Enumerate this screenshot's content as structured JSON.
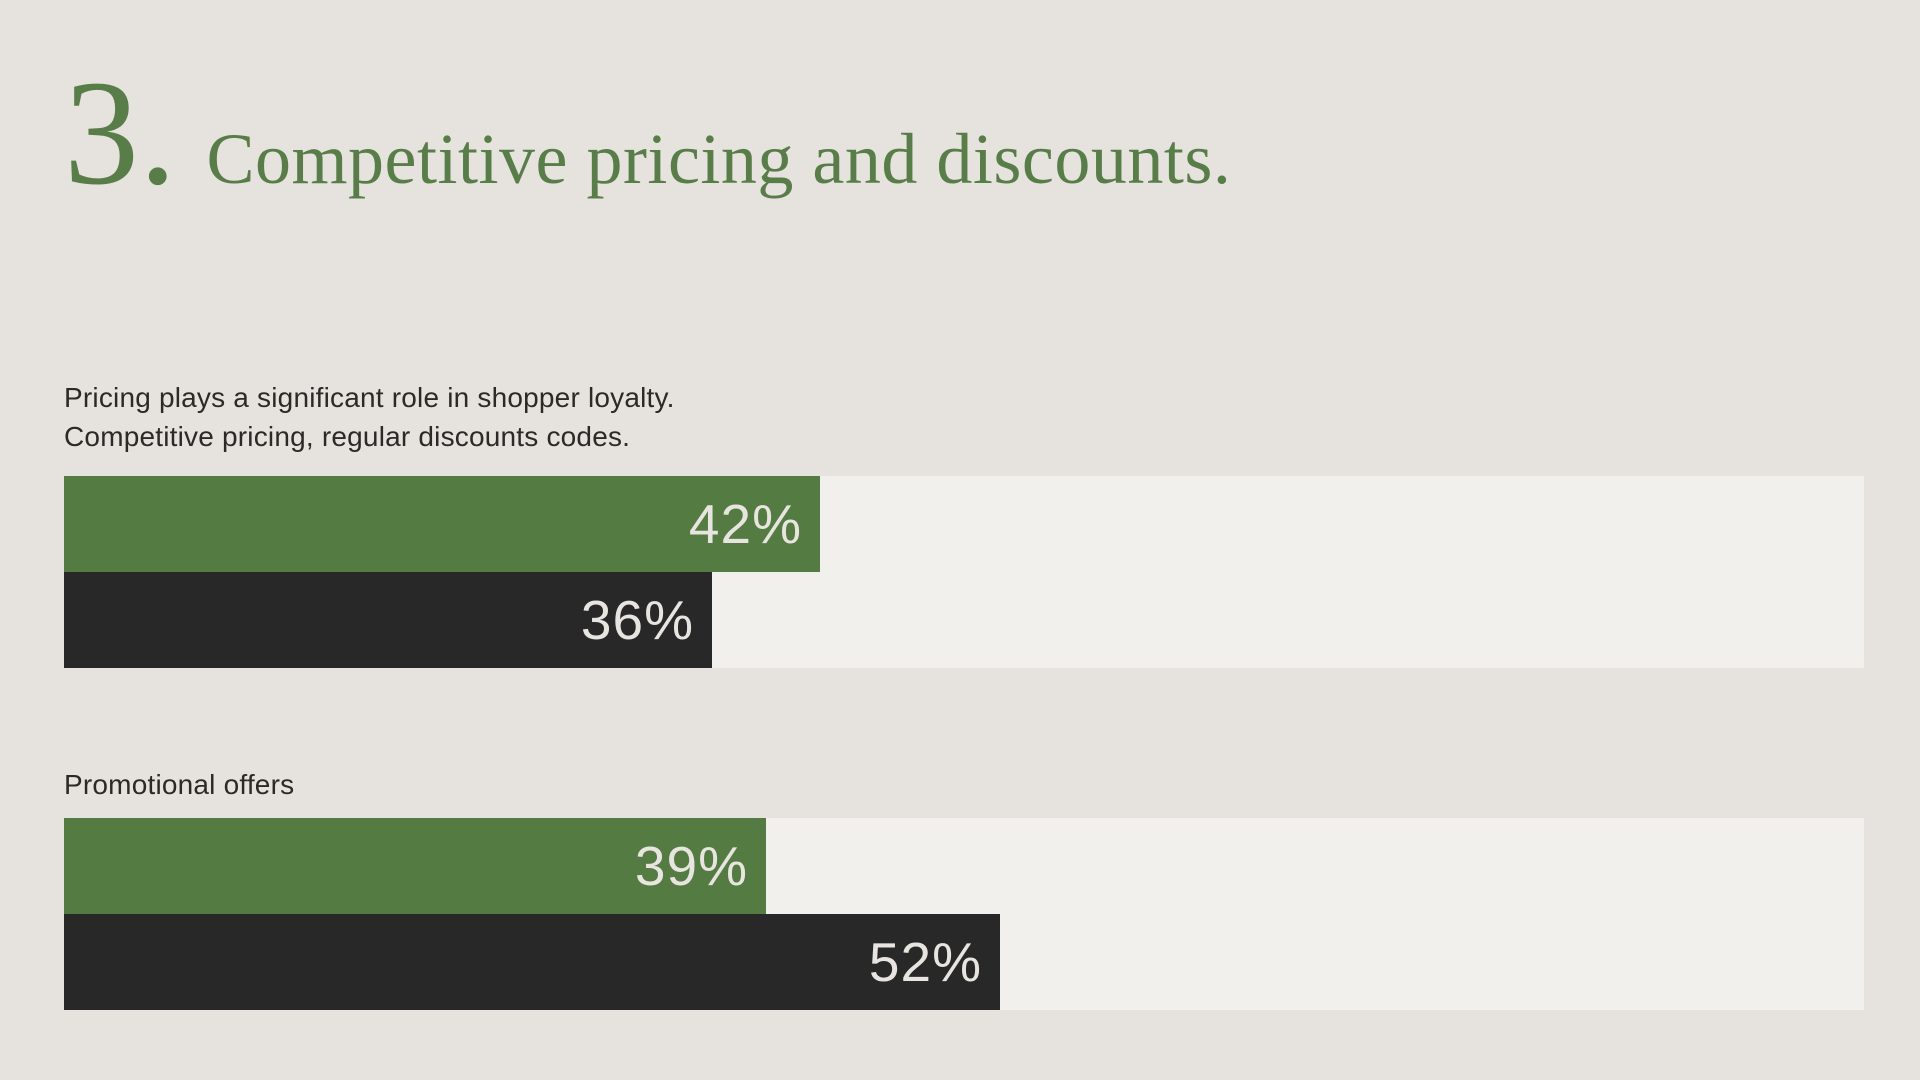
{
  "theme": {
    "background": "#E6E3DE",
    "track": "#F1F0ED",
    "green": "#537B42",
    "title_green": "#587D49",
    "dark": "#282829",
    "text": "#2B2A27",
    "value_text": "#E8E5E0"
  },
  "header": {
    "number": "3.",
    "title": "Competitive pricing and discounts."
  },
  "chart_data": [
    {
      "type": "bar",
      "orientation": "horizontal",
      "title_lines": [
        "Pricing plays a significant role in shopper loyalty.",
        "Competitive pricing, regular discounts codes."
      ],
      "series": [
        {
          "name": "green-bar",
          "value": 42,
          "label": "42%",
          "color": "#537B42"
        },
        {
          "name": "dark-bar",
          "value": 36,
          "label": "36%",
          "color": "#282829"
        }
      ],
      "xlim": [
        0,
        100
      ],
      "unit": "%",
      "grid": false,
      "legend": false
    },
    {
      "type": "bar",
      "orientation": "horizontal",
      "title_lines": [
        "Promotional offers"
      ],
      "series": [
        {
          "name": "green-bar",
          "value": 39,
          "label": "39%",
          "color": "#537B42"
        },
        {
          "name": "dark-bar",
          "value": 52,
          "label": "52%",
          "color": "#282829"
        }
      ],
      "xlim": [
        0,
        100
      ],
      "unit": "%",
      "grid": false,
      "legend": false
    }
  ]
}
